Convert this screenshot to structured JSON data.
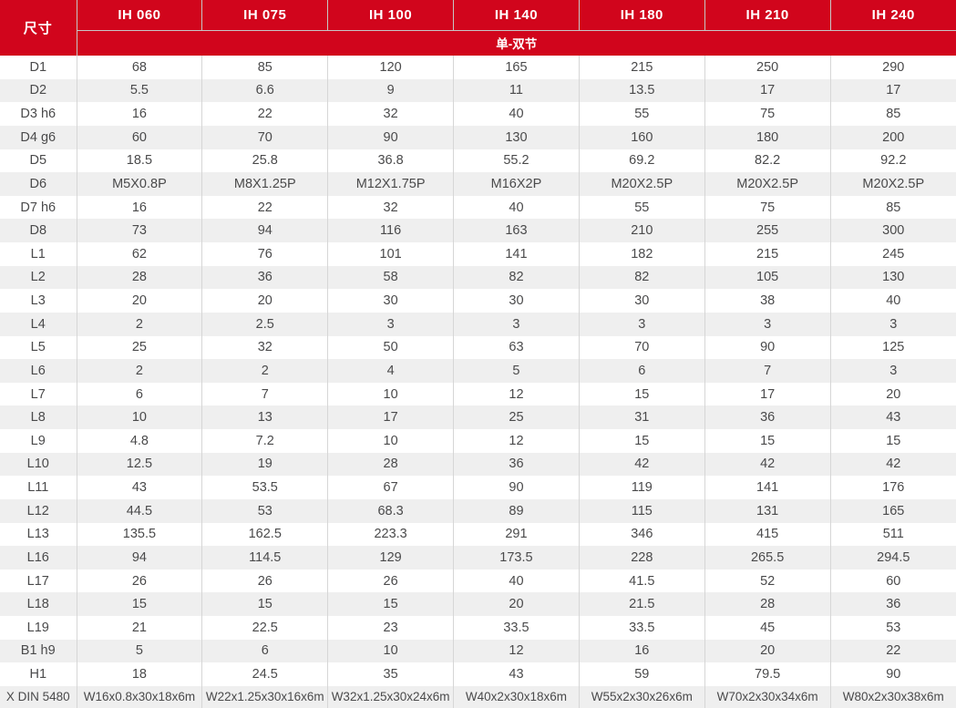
{
  "theme": {
    "header_bg": "#d1051c",
    "header_text": "#ffffff",
    "body_text": "#4a4a4b",
    "row_alt_bg": "#efefef",
    "grid_line": "#d6d6d6"
  },
  "table": {
    "corner_label": "尺寸",
    "columns": [
      "IH 060",
      "IH 075",
      "IH 100",
      "IH 140",
      "IH 180",
      "IH 210",
      "IH 240"
    ],
    "subheader": "单-双节",
    "rows": [
      {
        "label": "D1",
        "values": [
          "68",
          "85",
          "120",
          "165",
          "215",
          "250",
          "290"
        ]
      },
      {
        "label": "D2",
        "values": [
          "5.5",
          "6.6",
          "9",
          "11",
          "13.5",
          "17",
          "17"
        ]
      },
      {
        "label": "D3  h6",
        "values": [
          "16",
          "22",
          "32",
          "40",
          "55",
          "75",
          "85"
        ]
      },
      {
        "label": "D4  g6",
        "values": [
          "60",
          "70",
          "90",
          "130",
          "160",
          "180",
          "200"
        ]
      },
      {
        "label": "D5",
        "values": [
          "18.5",
          "25.8",
          "36.8",
          "55.2",
          "69.2",
          "82.2",
          "92.2"
        ]
      },
      {
        "label": "D6",
        "values": [
          "M5X0.8P",
          "M8X1.25P",
          "M12X1.75P",
          "M16X2P",
          "M20X2.5P",
          "M20X2.5P",
          "M20X2.5P"
        ]
      },
      {
        "label": "D7  h6",
        "values": [
          "16",
          "22",
          "32",
          "40",
          "55",
          "75",
          "85"
        ]
      },
      {
        "label": "D8",
        "values": [
          "73",
          "94",
          "116",
          "163",
          "210",
          "255",
          "300"
        ]
      },
      {
        "label": "L1",
        "values": [
          "62",
          "76",
          "101",
          "141",
          "182",
          "215",
          "245"
        ]
      },
      {
        "label": "L2",
        "values": [
          "28",
          "36",
          "58",
          "82",
          "82",
          "105",
          "130"
        ]
      },
      {
        "label": "L3",
        "values": [
          "20",
          "20",
          "30",
          "30",
          "30",
          "38",
          "40"
        ]
      },
      {
        "label": "L4",
        "values": [
          "2",
          "2.5",
          "3",
          "3",
          "3",
          "3",
          "3"
        ]
      },
      {
        "label": "L5",
        "values": [
          "25",
          "32",
          "50",
          "63",
          "70",
          "90",
          "125"
        ]
      },
      {
        "label": "L6",
        "values": [
          "2",
          "2",
          "4",
          "5",
          "6",
          "7",
          "3"
        ]
      },
      {
        "label": "L7",
        "values": [
          "6",
          "7",
          "10",
          "12",
          "15",
          "17",
          "20"
        ]
      },
      {
        "label": "L8",
        "values": [
          "10",
          "13",
          "17",
          "25",
          "31",
          "36",
          "43"
        ]
      },
      {
        "label": "L9",
        "values": [
          "4.8",
          "7.2",
          "10",
          "12",
          "15",
          "15",
          "15"
        ]
      },
      {
        "label": "L10",
        "values": [
          "12.5",
          "19",
          "28",
          "36",
          "42",
          "42",
          "42"
        ]
      },
      {
        "label": "L11",
        "values": [
          "43",
          "53.5",
          "67",
          "90",
          "119",
          "141",
          "176"
        ]
      },
      {
        "label": "L12",
        "values": [
          "44.5",
          "53",
          "68.3",
          "89",
          "115",
          "131",
          "165"
        ]
      },
      {
        "label": "L13",
        "values": [
          "135.5",
          "162.5",
          "223.3",
          "291",
          "346",
          "415",
          "511"
        ]
      },
      {
        "label": "L16",
        "values": [
          "94",
          "114.5",
          "129",
          "173.5",
          "228",
          "265.5",
          "294.5"
        ]
      },
      {
        "label": "L17",
        "values": [
          "26",
          "26",
          "26",
          "40",
          "41.5",
          "52",
          "60"
        ]
      },
      {
        "label": "L18",
        "values": [
          "15",
          "15",
          "15",
          "20",
          "21.5",
          "28",
          "36"
        ]
      },
      {
        "label": "L19",
        "values": [
          "21",
          "22.5",
          "23",
          "33.5",
          "33.5",
          "45",
          "53"
        ]
      },
      {
        "label": "B1  h9",
        "values": [
          "5",
          "6",
          "10",
          "12",
          "16",
          "20",
          "22"
        ]
      },
      {
        "label": "H1",
        "values": [
          "18",
          "24.5",
          "35",
          "43",
          "59",
          "79.5",
          "90"
        ]
      },
      {
        "label": "X DIN 5480",
        "values": [
          "W16x0.8x30x18x6m",
          "W22x1.25x30x16x6m",
          "W32x1.25x30x24x6m",
          "W40x2x30x18x6m",
          "W55x2x30x26x6m",
          "W70x2x30x34x6m",
          "W80x2x30x38x6m"
        ]
      }
    ]
  }
}
